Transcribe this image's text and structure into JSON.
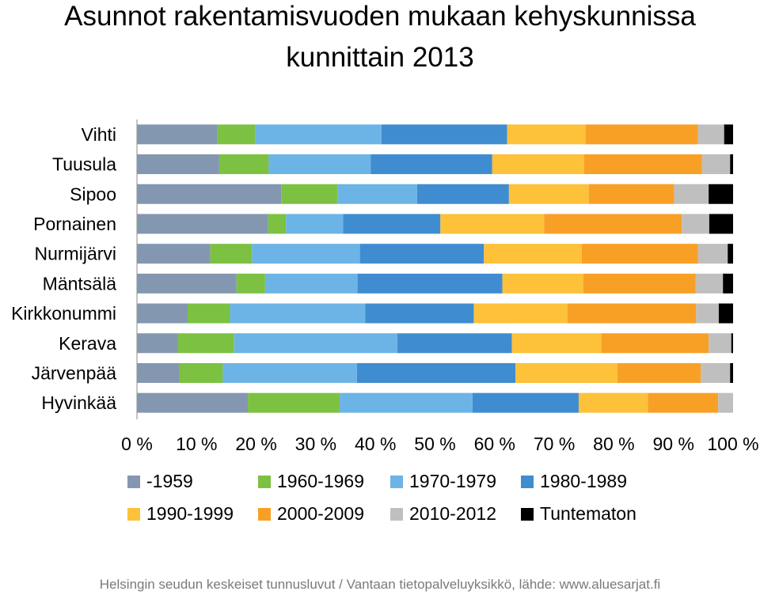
{
  "title_line1": "Asunnot rakentamisvuoden mukaan kehyskunnissa",
  "title_line2": "kunnittain 2013",
  "source": "Helsingin seudun keskeiset tunnusluvut / Vantaan tietopalveluyksikkö, lähde: www.aluesarjat.fi",
  "chart_data": {
    "type": "bar",
    "orientation": "horizontal",
    "stacked": "percent",
    "title": "Asunnot rakentamisvuoden mukaan kehyskunnissa kunnittain 2013",
    "categories": [
      "Vihti",
      "Tuusula",
      "Sipoo",
      "Pornainen",
      "Nurmijärvi",
      "Mäntsälä",
      "Kirkkonummi",
      "Kerava",
      "Järvenpää",
      "Hyvinkää"
    ],
    "xlim": [
      0,
      100
    ],
    "x_ticks": [
      "0 %",
      "10 %",
      "20 %",
      "30 %",
      "40 %",
      "50 %",
      "60 %",
      "70 %",
      "80 %",
      "90 %",
      "100 %"
    ],
    "legend_position": "bottom",
    "grid": false,
    "series": [
      {
        "name": "-1959",
        "color": "#8497b0",
        "values": [
          13.5,
          13.8,
          24.2,
          22.0,
          12.3,
          16.7,
          8.5,
          6.9,
          7.1,
          18.6
        ]
      },
      {
        "name": "1960-1969",
        "color": "#7cc142",
        "values": [
          6.3,
          8.3,
          9.5,
          3.0,
          7.0,
          4.8,
          7.1,
          9.4,
          7.3,
          15.4
        ]
      },
      {
        "name": "1970-1979",
        "color": "#6db4e6",
        "values": [
          21.2,
          17.1,
          13.3,
          9.6,
          18.1,
          15.5,
          22.7,
          27.4,
          22.5,
          22.3
        ]
      },
      {
        "name": "1980-1989",
        "color": "#3f8dd0",
        "values": [
          21.1,
          20.4,
          15.4,
          16.3,
          20.8,
          24.3,
          18.2,
          19.2,
          26.6,
          17.8
        ]
      },
      {
        "name": "1990-1999",
        "color": "#fdc13a",
        "values": [
          13.2,
          15.4,
          13.4,
          17.4,
          16.4,
          13.6,
          15.7,
          15.0,
          17.1,
          11.6
        ]
      },
      {
        "name": "2000-2009",
        "color": "#f8a026",
        "values": [
          18.8,
          19.8,
          14.3,
          23.1,
          19.5,
          18.8,
          21.6,
          18.0,
          14.0,
          11.8
        ]
      },
      {
        "name": "2010-2012",
        "color": "#bfbfbf",
        "values": [
          4.4,
          4.7,
          5.8,
          4.6,
          5.0,
          4.6,
          3.8,
          3.8,
          4.9,
          2.5
        ]
      },
      {
        "name": "Tuntematon",
        "color": "#000000",
        "values": [
          1.5,
          0.5,
          4.1,
          4.0,
          0.9,
          1.7,
          2.4,
          0.3,
          0.5,
          0.0
        ]
      }
    ]
  }
}
